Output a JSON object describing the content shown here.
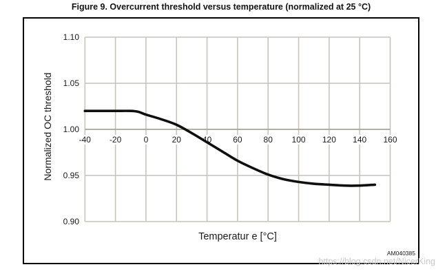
{
  "figure": {
    "title": "Figure 9. Overcurrent threshold versus temperature (normalized at 25 °C)",
    "code": "AM040385",
    "watermark": "https://blog.csdn.net/NicerKing"
  },
  "chart_data": {
    "type": "line",
    "title": "Overcurrent threshold versus temperature (normalized at 25 °C)",
    "xlabel": "Temperatur e [°C]",
    "ylabel": "Normalized OC threshold",
    "xlim": [
      -40,
      160
    ],
    "ylim": [
      0.9,
      1.1
    ],
    "x_ticks": [
      "-40",
      "-20",
      "0",
      "20",
      "40",
      "60",
      "80",
      "100",
      "120",
      "140",
      "160"
    ],
    "y_ticks": [
      "1.10",
      "1.05",
      "1.00",
      "0.95",
      "0.90"
    ],
    "grid": true,
    "legend_position": "none",
    "x_axis_cross_at_y": 1.0,
    "series": [
      {
        "name": "Normalized OC threshold",
        "x": [
          -40,
          -30,
          -20,
          -10,
          -5,
          0,
          10,
          20,
          30,
          40,
          50,
          60,
          70,
          80,
          90,
          100,
          110,
          120,
          130,
          140,
          150
        ],
        "y": [
          1.02,
          1.02,
          1.02,
          1.02,
          1.019,
          1.016,
          1.011,
          1.005,
          0.996,
          0.986,
          0.976,
          0.966,
          0.958,
          0.951,
          0.946,
          0.943,
          0.941,
          0.94,
          0.939,
          0.939,
          0.94
        ]
      }
    ],
    "colors": {
      "curve": "#0f0f0f",
      "gridline": "#c7c4be",
      "axis_line": "#aca69d",
      "text": "#1a1a1a",
      "frame": "#000000",
      "watermark": "#c9c9c9",
      "background": "#ffffff"
    }
  }
}
